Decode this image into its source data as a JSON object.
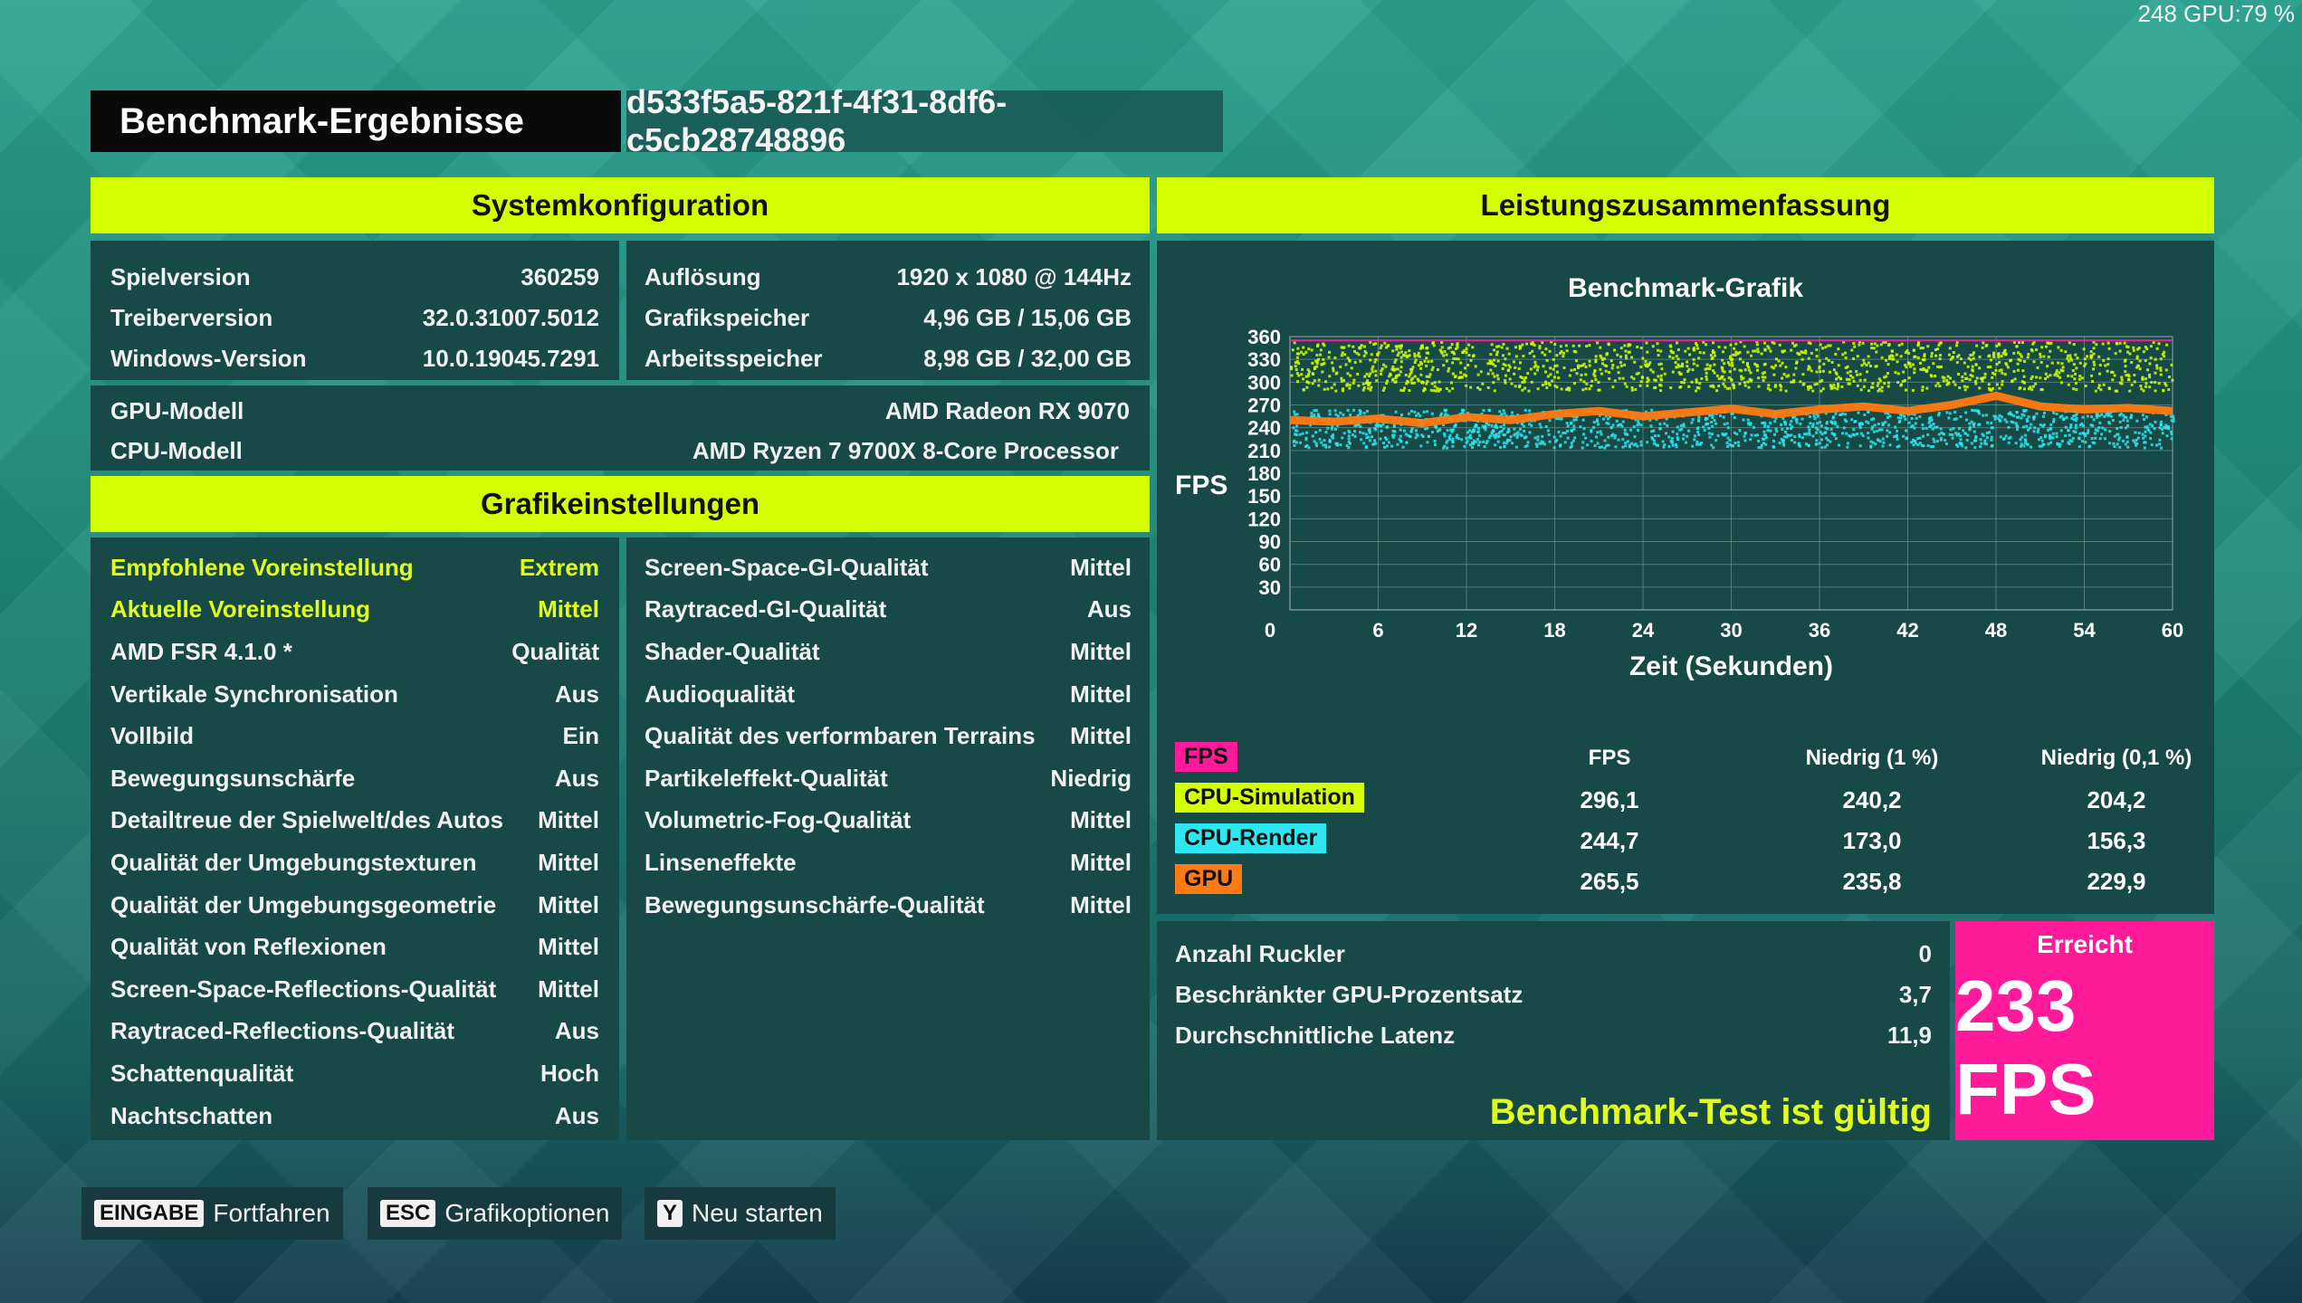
{
  "overlay": "248 GPU:79 %",
  "header": {
    "title": "Benchmark-Ergebnisse",
    "run_id": "d533f5a5-821f-4f31-8df6-c5cb28748896"
  },
  "system": {
    "heading": "Systemkonfiguration",
    "left": [
      {
        "label": "Spielversion",
        "value": "360259"
      },
      {
        "label": "Treiberversion",
        "value": "32.0.31007.5012"
      },
      {
        "label": "Windows-Version",
        "value": "10.0.19045.7291"
      }
    ],
    "right": [
      {
        "label": "Auflösung",
        "value": "1920 x 1080 @ 144Hz"
      },
      {
        "label": "Grafikspeicher",
        "value": "4,96 GB / 15,06 GB"
      },
      {
        "label": "Arbeitsspeicher",
        "value": "8,98 GB / 32,00 GB"
      }
    ],
    "gpu": {
      "label": "GPU-Modell",
      "value": "AMD Radeon RX 9070"
    },
    "cpu": {
      "label": "CPU-Modell",
      "value": "AMD Ryzen 7 9700X 8-Core Processor"
    }
  },
  "graphics": {
    "heading": "Grafikeinstellungen",
    "left": [
      {
        "label": "Empfohlene Voreinstellung",
        "value": "Extrem",
        "highlight": true
      },
      {
        "label": "Aktuelle Voreinstellung",
        "value": "Mittel",
        "highlight": true
      },
      {
        "label": "AMD FSR 4.1.0 *",
        "value": "Qualität"
      },
      {
        "label": "Vertikale Synchronisation",
        "value": "Aus"
      },
      {
        "label": "Vollbild",
        "value": "Ein"
      },
      {
        "label": "Bewegungsunschärfe",
        "value": "Aus"
      },
      {
        "label": "Detailtreue der Spielwelt/des Autos",
        "value": "Mittel"
      },
      {
        "label": "Qualität der Umgebungstexturen",
        "value": "Mittel"
      },
      {
        "label": "Qualität der Umgebungsgeometrie",
        "value": "Mittel"
      },
      {
        "label": "Qualität von Reflexionen",
        "value": "Mittel"
      },
      {
        "label": "Screen-Space-Reflections-Qualität",
        "value": "Mittel"
      },
      {
        "label": "Raytraced-Reflections-Qualität",
        "value": "Aus"
      },
      {
        "label": "Schattenqualität",
        "value": "Hoch"
      },
      {
        "label": "Nachtschatten",
        "value": "Aus"
      }
    ],
    "right": [
      {
        "label": "Screen-Space-GI-Qualität",
        "value": "Mittel"
      },
      {
        "label": "Raytraced-GI-Qualität",
        "value": "Aus"
      },
      {
        "label": "Shader-Qualität",
        "value": "Mittel"
      },
      {
        "label": "Audioqualität",
        "value": "Mittel"
      },
      {
        "label": "Qualität des verformbaren Terrains",
        "value": "Mittel"
      },
      {
        "label": "Partikeleffekt-Qualität",
        "value": "Niedrig"
      },
      {
        "label": "Volumetric-Fog-Qualität",
        "value": "Mittel"
      },
      {
        "label": "Linseneffekte",
        "value": "Mittel"
      },
      {
        "label": "Bewegungsunschärfe-Qualität",
        "value": "Mittel"
      }
    ]
  },
  "performance": {
    "heading": "Leistungszusammenfassung",
    "table": {
      "headers": [
        "FPS",
        "Niedrig (1 %)",
        "Niedrig (0,1 %)"
      ],
      "rows": [
        {
          "label": "FPS",
          "color": "#ff1a9a",
          "values": [
            "",
            "",
            ""
          ]
        },
        {
          "label": "CPU-Simulation",
          "color": "#d4ff00",
          "values": [
            "296,1",
            "240,2",
            "204,2"
          ]
        },
        {
          "label": "CPU-Render",
          "color": "#2ee6f0",
          "values": [
            "244,7",
            "173,0",
            "156,3"
          ]
        },
        {
          "label": "GPU",
          "color": "#ff7a12",
          "values": [
            "265,5",
            "235,8",
            "229,9"
          ]
        }
      ]
    },
    "stats": [
      {
        "label": "Anzahl Ruckler",
        "value": "0"
      },
      {
        "label": "Beschränkter GPU-Prozentsatz",
        "value": "3,7"
      },
      {
        "label": "Durchschnittliche Latenz",
        "value": "11,9"
      }
    ],
    "valid_text": "Benchmark-Test ist gültig",
    "achieved_label": "Erreicht",
    "achieved_value": "233 FPS"
  },
  "chart_data": {
    "type": "scatter",
    "title": "Benchmark-Grafik",
    "xlabel": "Zeit (Sekunden)",
    "ylabel": "FPS",
    "xlim": [
      0,
      60
    ],
    "ylim": [
      0,
      360
    ],
    "xticks": [
      0,
      6,
      12,
      18,
      24,
      30,
      36,
      42,
      48,
      54,
      60
    ],
    "yticks": [
      30,
      60,
      90,
      120,
      150,
      180,
      210,
      240,
      270,
      300,
      330,
      360
    ],
    "grid": true,
    "series": [
      {
        "color": "#d4ff00",
        "band": [
          290,
          355
        ]
      },
      {
        "color": "#2ee6f0",
        "band": [
          215,
          265
        ]
      },
      {
        "color": "#ff7a12",
        "line": [
          [
            0,
            250
          ],
          [
            3,
            248
          ],
          [
            6,
            252
          ],
          [
            9,
            246
          ],
          [
            12,
            254
          ],
          [
            15,
            250
          ],
          [
            18,
            258
          ],
          [
            21,
            262
          ],
          [
            24,
            255
          ],
          [
            27,
            260
          ],
          [
            30,
            265
          ],
          [
            33,
            258
          ],
          [
            36,
            264
          ],
          [
            39,
            268
          ],
          [
            42,
            262
          ],
          [
            45,
            270
          ],
          [
            48,
            282
          ],
          [
            51,
            268
          ],
          [
            54,
            264
          ],
          [
            57,
            266
          ],
          [
            60,
            262
          ]
        ]
      }
    ],
    "max_line": 355
  },
  "footer": [
    {
      "key": "EINGABE",
      "label": "Fortfahren"
    },
    {
      "key": "ESC",
      "label": "Grafikoptionen"
    },
    {
      "key": "Y",
      "label": "Neu starten"
    }
  ]
}
